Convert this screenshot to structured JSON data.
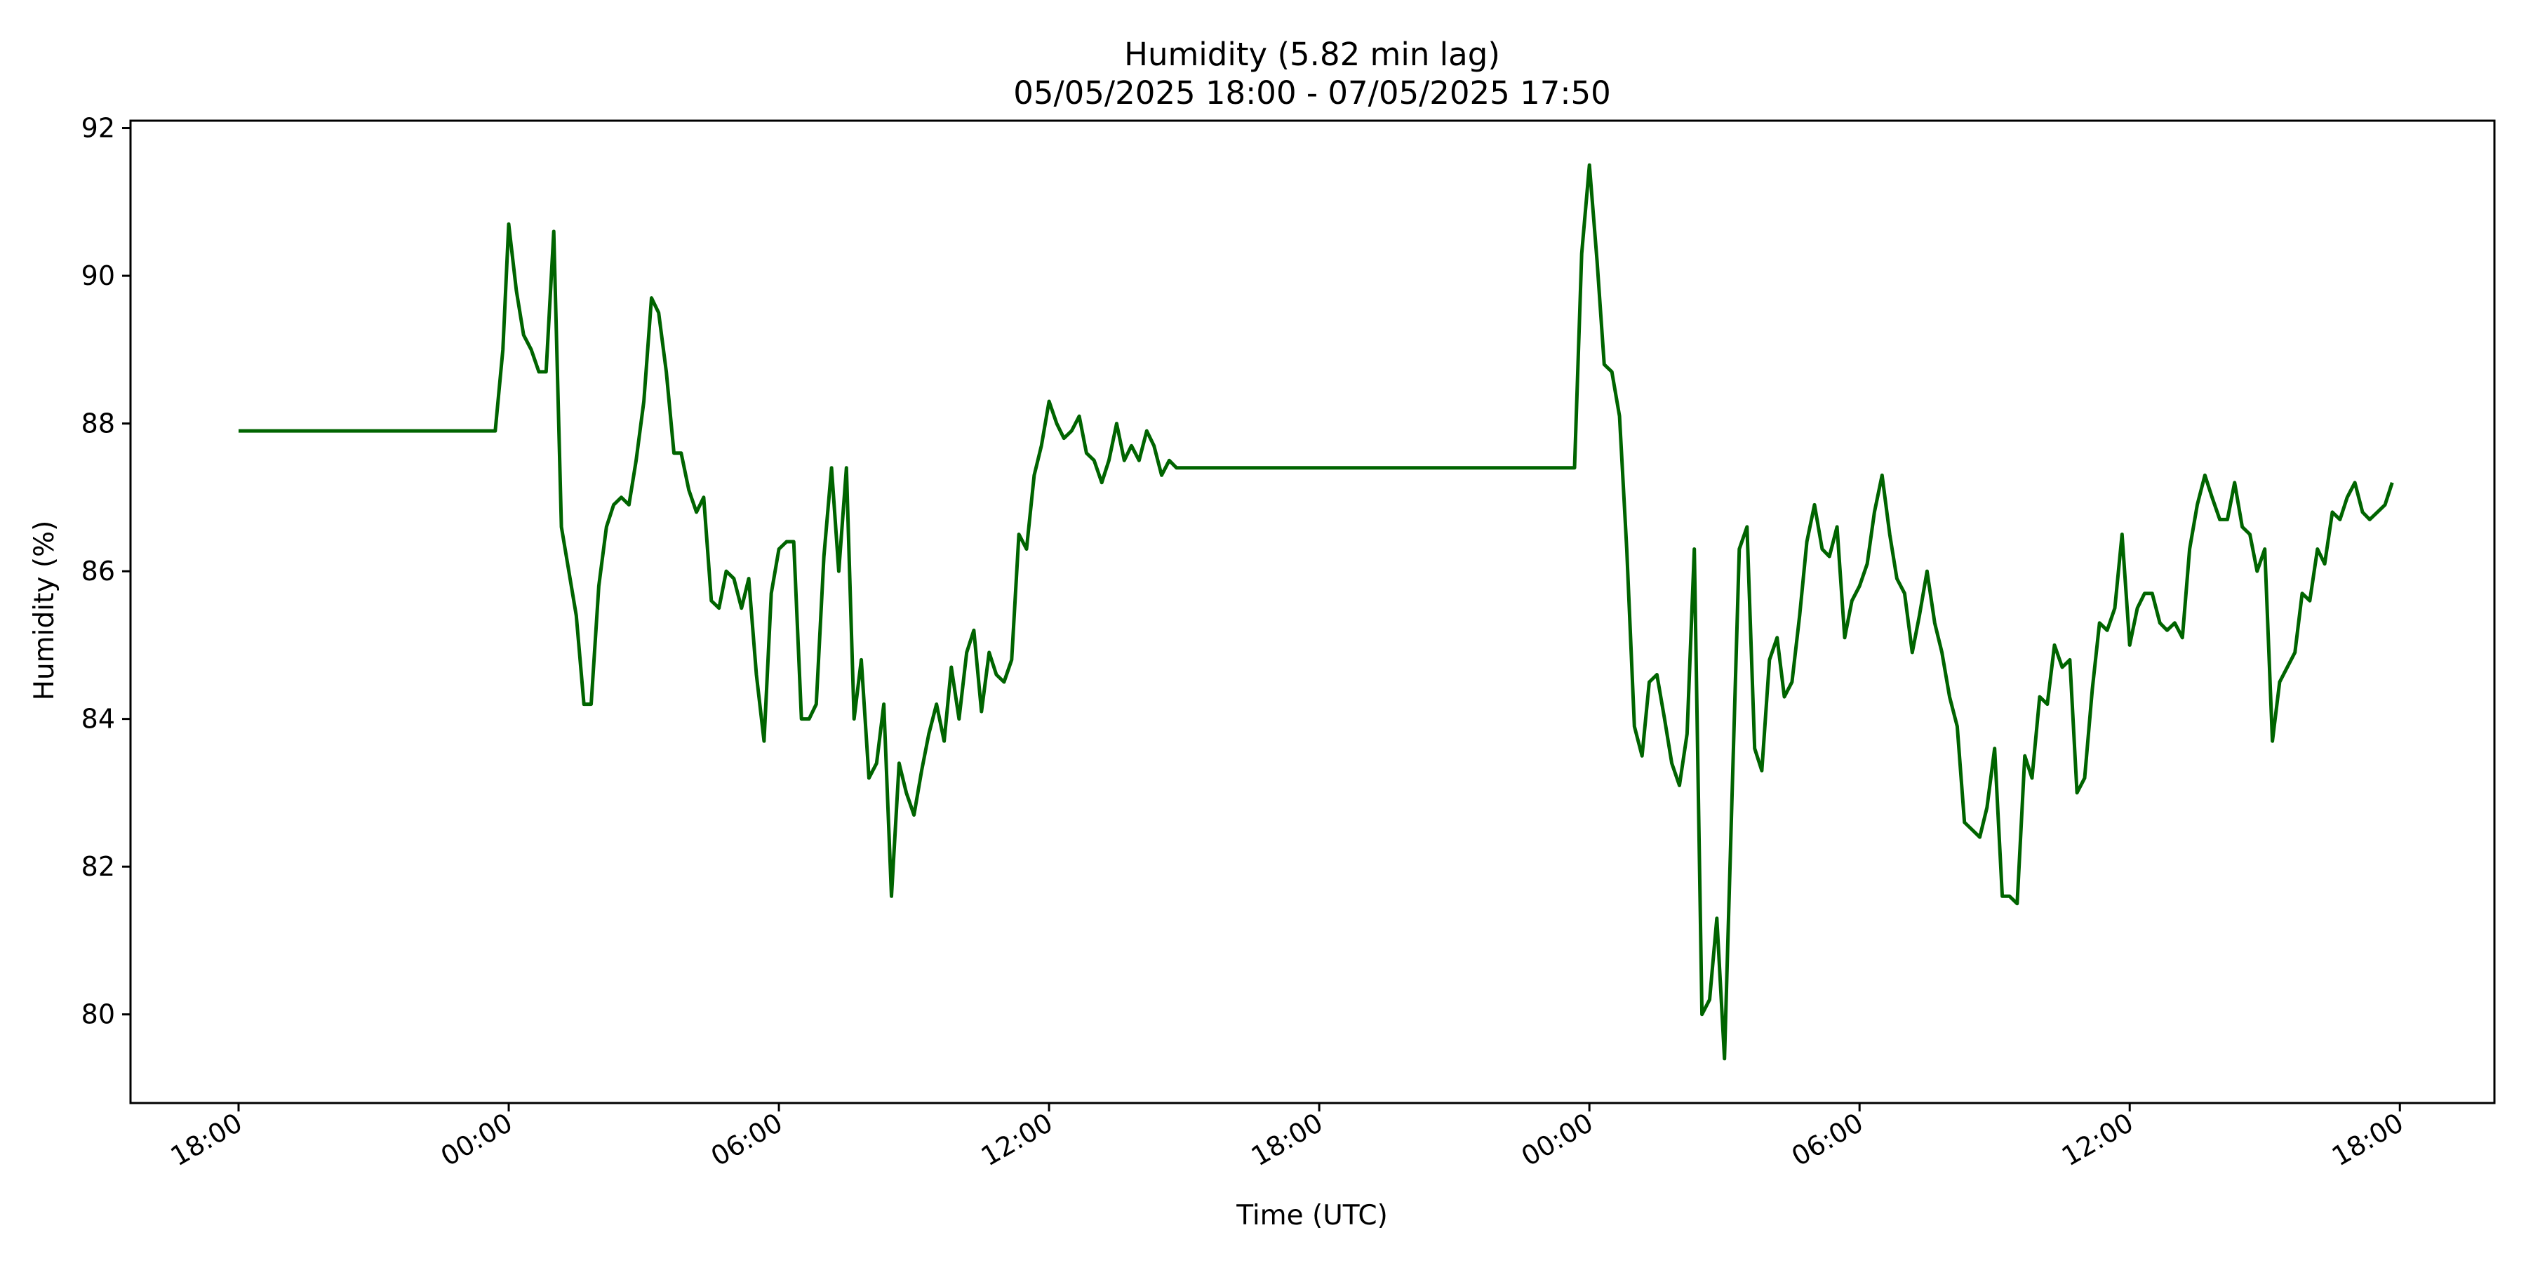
{
  "chart_data": {
    "type": "line",
    "title": "Humidity (5.82 min lag)",
    "subtitle": "05/05/2025 18:00 - 07/05/2025 17:50",
    "xlabel": "Time (UTC)",
    "ylabel": "Humidity (%)",
    "x_ticks": [
      "18:00",
      "00:00",
      "06:00",
      "12:00",
      "18:00",
      "00:00",
      "06:00",
      "12:00",
      "18:00"
    ],
    "y_ticks": [
      "80",
      "82",
      "84",
      "86",
      "88",
      "90",
      "92"
    ],
    "xlim_hours": [
      -2.4,
      50.1
    ],
    "ylim": [
      78.8,
      92.1
    ],
    "grid": false,
    "line_color": "#006400",
    "series": [
      {
        "x": [
          0,
          5.7,
          5.87,
          6.0,
          6.17,
          6.33,
          6.5,
          6.67,
          6.83,
          7.0,
          7.17,
          7.5,
          7.67,
          7.83,
          8.0,
          8.17,
          8.33,
          8.5,
          8.67,
          8.83,
          9.0,
          9.17,
          9.33,
          9.5,
          9.67,
          9.83,
          10.0,
          10.17,
          10.33,
          10.5,
          10.67,
          10.83,
          11.0,
          11.17,
          11.33,
          11.5,
          11.67,
          11.83,
          12.0,
          12.17,
          12.33,
          12.5,
          12.67,
          12.83,
          13.0,
          13.17,
          13.33,
          13.5,
          13.67,
          13.83,
          14.0,
          14.17,
          14.33,
          14.5,
          14.67,
          14.83,
          15.0,
          15.17,
          15.33,
          15.5,
          15.67,
          15.83,
          16.0,
          16.17,
          16.33,
          16.5,
          16.67,
          16.83,
          17.0,
          17.17,
          17.33,
          17.5,
          17.67,
          17.83,
          18.0,
          18.17,
          18.33,
          18.5,
          18.67,
          18.83,
          19.0,
          19.17,
          19.33,
          19.5,
          19.67,
          19.83,
          20.0,
          20.17,
          20.33,
          20.5,
          20.67,
          20.83,
          21.0,
          21.17,
          21.33,
          21.5,
          21.67,
          21.83,
          22.0,
          22.17,
          22.33,
          22.5,
          22.67,
          22.83,
          29.67,
          29.83,
          30.0,
          30.17,
          30.33,
          30.5,
          30.67,
          30.83,
          31.0,
          31.17,
          31.33,
          31.5,
          31.67,
          31.83,
          32.0,
          32.17,
          32.33,
          32.5,
          32.67,
          32.83,
          33.0,
          33.17,
          33.33,
          33.5,
          33.67,
          33.83,
          34.0,
          34.17,
          34.33,
          34.5,
          34.67,
          34.83,
          35.0,
          35.17,
          35.33,
          35.5,
          35.67,
          35.83,
          36.0,
          36.17,
          36.33,
          36.5,
          36.67,
          36.83,
          37.0,
          37.17,
          37.33,
          37.5,
          37.67,
          37.83,
          38.0,
          38.17,
          38.33,
          38.5,
          38.67,
          38.83,
          39.0,
          39.17,
          39.33,
          39.5,
          39.67,
          39.83,
          40.0,
          40.17,
          40.33,
          40.5,
          40.67,
          40.83,
          41.0,
          41.17,
          41.33,
          41.5,
          41.67,
          41.83,
          42.0,
          42.17,
          42.33,
          42.5,
          42.67,
          42.83,
          43.0,
          43.17,
          43.33,
          43.5,
          43.67,
          43.83,
          44.0,
          44.17,
          44.33,
          44.5,
          44.67,
          44.83,
          45.0,
          45.17,
          45.33,
          45.5,
          45.67,
          45.83,
          46.0,
          46.17,
          46.33,
          46.5,
          46.67,
          46.83,
          47.0,
          47.17,
          47.33,
          47.5,
          47.67,
          47.83
        ],
        "values": [
          87.9,
          87.9,
          89.0,
          90.7,
          89.8,
          89.2,
          89.0,
          88.7,
          88.7,
          90.6,
          86.6,
          85.4,
          84.2,
          84.2,
          85.8,
          86.6,
          86.9,
          87.0,
          86.9,
          87.5,
          88.3,
          89.7,
          89.5,
          88.7,
          87.6,
          87.6,
          87.1,
          86.8,
          87.0,
          85.6,
          85.5,
          86.0,
          85.9,
          85.5,
          85.9,
          84.6,
          83.7,
          85.7,
          86.3,
          86.4,
          86.4,
          84.0,
          84.0,
          84.2,
          86.2,
          87.4,
          86.0,
          87.4,
          84.0,
          84.8,
          83.2,
          83.4,
          84.2,
          81.6,
          83.4,
          83.0,
          82.7,
          83.3,
          83.8,
          84.2,
          83.7,
          84.7,
          84.0,
          84.9,
          85.2,
          84.1,
          84.9,
          84.6,
          84.5,
          84.8,
          86.5,
          86.3,
          87.3,
          87.7,
          88.3,
          88.0,
          87.8,
          87.9,
          88.1,
          87.6,
          87.5,
          87.2,
          87.5,
          88.0,
          87.5,
          87.7,
          87.5,
          87.9,
          87.7,
          87.3,
          87.5,
          87.4,
          87.4,
          87.4,
          87.4,
          87.4,
          87.4,
          87.4,
          87.4,
          87.4,
          87.4,
          87.4,
          87.4,
          87.4,
          87.4,
          90.3,
          91.5,
          90.2,
          88.8,
          88.7,
          88.1,
          86.3,
          83.9,
          83.5,
          84.5,
          84.6,
          84.0,
          83.4,
          83.1,
          83.8,
          86.3,
          80.0,
          80.2,
          81.3,
          79.4,
          83.0,
          86.3,
          86.6,
          83.6,
          83.3,
          84.8,
          85.1,
          84.3,
          84.5,
          85.4,
          86.4,
          86.9,
          86.3,
          86.2,
          86.6,
          85.1,
          85.6,
          85.8,
          86.1,
          86.8,
          87.3,
          86.5,
          85.9,
          85.7,
          84.9,
          85.4,
          86.0,
          85.3,
          84.9,
          84.3,
          83.9,
          82.6,
          82.5,
          82.4,
          82.8,
          83.6,
          81.6,
          81.6,
          81.5,
          83.5,
          83.2,
          84.3,
          84.2,
          85.0,
          84.7,
          84.8,
          83.0,
          83.2,
          84.4,
          85.3,
          85.2,
          85.5,
          86.5,
          85.0,
          85.5,
          85.7,
          85.7,
          85.3,
          85.2,
          85.3,
          85.1,
          86.3,
          86.9,
          87.3,
          87.0,
          86.7,
          86.7,
          87.2,
          86.6,
          86.5,
          86.0,
          86.3,
          83.7,
          84.5,
          84.7,
          84.9,
          85.7,
          85.6,
          86.3,
          86.1,
          86.8,
          86.7,
          87.0,
          87.2,
          86.8,
          86.7,
          86.8,
          86.9,
          87.2
        ]
      }
    ]
  }
}
